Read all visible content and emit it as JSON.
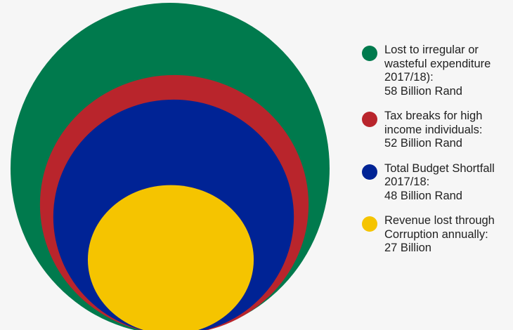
{
  "chart_data": {
    "type": "bubble",
    "title": "",
    "unit": "Billion Rand",
    "series": [
      {
        "name": "Lost to irregular or wasteful expenditure 2017/18)",
        "value": 58,
        "color": "#007a4d",
        "label_lines": [
          "Lost to irregular or",
          "wasteful expenditure",
          "2017/18):",
          "58 Billion Rand"
        ]
      },
      {
        "name": "Tax breaks for high income individuals",
        "value": 52,
        "color": "#b9252c",
        "label_lines": [
          "Tax breaks for high",
          "income individuals:",
          "52 Billion Rand"
        ]
      },
      {
        "name": "Total Budget Shortfall 2017/18",
        "value": 48,
        "color": "#002395",
        "label_lines": [
          "Total Budget Shortfall",
          "2017/18:",
          "48 Billion Rand"
        ]
      },
      {
        "name": "Revenue lost through Corruption annually",
        "value": 27,
        "color": "#f5c400",
        "label_lines": [
          "Revenue lost through",
          "Corruption annually:",
          "27 Billion"
        ]
      }
    ],
    "legend_position": "right",
    "grid": false
  }
}
